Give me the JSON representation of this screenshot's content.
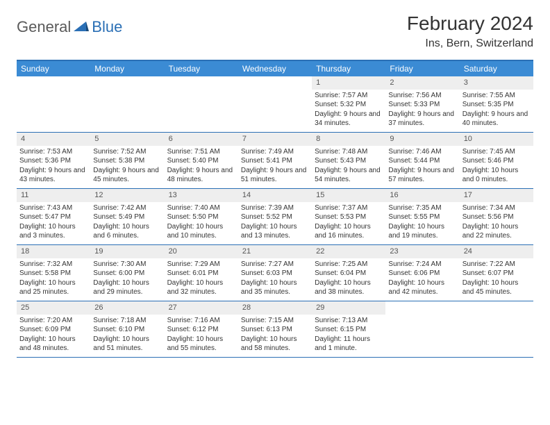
{
  "logo": {
    "text1": "General",
    "text2": "Blue"
  },
  "title": "February 2024",
  "location": "Ins, Bern, Switzerland",
  "colors": {
    "header_bg": "#3b8bd4",
    "header_text": "#ffffff",
    "border": "#2a6fb5",
    "daynum_bg": "#eeeeee",
    "body_text": "#333333"
  },
  "day_names": [
    "Sunday",
    "Monday",
    "Tuesday",
    "Wednesday",
    "Thursday",
    "Friday",
    "Saturday"
  ],
  "first_weekday_index": 4,
  "days": [
    {
      "n": 1,
      "sunrise": "7:57 AM",
      "sunset": "5:32 PM",
      "daylight": "9 hours and 34 minutes."
    },
    {
      "n": 2,
      "sunrise": "7:56 AM",
      "sunset": "5:33 PM",
      "daylight": "9 hours and 37 minutes."
    },
    {
      "n": 3,
      "sunrise": "7:55 AM",
      "sunset": "5:35 PM",
      "daylight": "9 hours and 40 minutes."
    },
    {
      "n": 4,
      "sunrise": "7:53 AM",
      "sunset": "5:36 PM",
      "daylight": "9 hours and 43 minutes."
    },
    {
      "n": 5,
      "sunrise": "7:52 AM",
      "sunset": "5:38 PM",
      "daylight": "9 hours and 45 minutes."
    },
    {
      "n": 6,
      "sunrise": "7:51 AM",
      "sunset": "5:40 PM",
      "daylight": "9 hours and 48 minutes."
    },
    {
      "n": 7,
      "sunrise": "7:49 AM",
      "sunset": "5:41 PM",
      "daylight": "9 hours and 51 minutes."
    },
    {
      "n": 8,
      "sunrise": "7:48 AM",
      "sunset": "5:43 PM",
      "daylight": "9 hours and 54 minutes."
    },
    {
      "n": 9,
      "sunrise": "7:46 AM",
      "sunset": "5:44 PM",
      "daylight": "9 hours and 57 minutes."
    },
    {
      "n": 10,
      "sunrise": "7:45 AM",
      "sunset": "5:46 PM",
      "daylight": "10 hours and 0 minutes."
    },
    {
      "n": 11,
      "sunrise": "7:43 AM",
      "sunset": "5:47 PM",
      "daylight": "10 hours and 3 minutes."
    },
    {
      "n": 12,
      "sunrise": "7:42 AM",
      "sunset": "5:49 PM",
      "daylight": "10 hours and 6 minutes."
    },
    {
      "n": 13,
      "sunrise": "7:40 AM",
      "sunset": "5:50 PM",
      "daylight": "10 hours and 10 minutes."
    },
    {
      "n": 14,
      "sunrise": "7:39 AM",
      "sunset": "5:52 PM",
      "daylight": "10 hours and 13 minutes."
    },
    {
      "n": 15,
      "sunrise": "7:37 AM",
      "sunset": "5:53 PM",
      "daylight": "10 hours and 16 minutes."
    },
    {
      "n": 16,
      "sunrise": "7:35 AM",
      "sunset": "5:55 PM",
      "daylight": "10 hours and 19 minutes."
    },
    {
      "n": 17,
      "sunrise": "7:34 AM",
      "sunset": "5:56 PM",
      "daylight": "10 hours and 22 minutes."
    },
    {
      "n": 18,
      "sunrise": "7:32 AM",
      "sunset": "5:58 PM",
      "daylight": "10 hours and 25 minutes."
    },
    {
      "n": 19,
      "sunrise": "7:30 AM",
      "sunset": "6:00 PM",
      "daylight": "10 hours and 29 minutes."
    },
    {
      "n": 20,
      "sunrise": "7:29 AM",
      "sunset": "6:01 PM",
      "daylight": "10 hours and 32 minutes."
    },
    {
      "n": 21,
      "sunrise": "7:27 AM",
      "sunset": "6:03 PM",
      "daylight": "10 hours and 35 minutes."
    },
    {
      "n": 22,
      "sunrise": "7:25 AM",
      "sunset": "6:04 PM",
      "daylight": "10 hours and 38 minutes."
    },
    {
      "n": 23,
      "sunrise": "7:24 AM",
      "sunset": "6:06 PM",
      "daylight": "10 hours and 42 minutes."
    },
    {
      "n": 24,
      "sunrise": "7:22 AM",
      "sunset": "6:07 PM",
      "daylight": "10 hours and 45 minutes."
    },
    {
      "n": 25,
      "sunrise": "7:20 AM",
      "sunset": "6:09 PM",
      "daylight": "10 hours and 48 minutes."
    },
    {
      "n": 26,
      "sunrise": "7:18 AM",
      "sunset": "6:10 PM",
      "daylight": "10 hours and 51 minutes."
    },
    {
      "n": 27,
      "sunrise": "7:16 AM",
      "sunset": "6:12 PM",
      "daylight": "10 hours and 55 minutes."
    },
    {
      "n": 28,
      "sunrise": "7:15 AM",
      "sunset": "6:13 PM",
      "daylight": "10 hours and 58 minutes."
    },
    {
      "n": 29,
      "sunrise": "7:13 AM",
      "sunset": "6:15 PM",
      "daylight": "11 hours and 1 minute."
    }
  ],
  "labels": {
    "sunrise_prefix": "Sunrise: ",
    "sunset_prefix": "Sunset: ",
    "daylight_prefix": "Daylight: "
  }
}
